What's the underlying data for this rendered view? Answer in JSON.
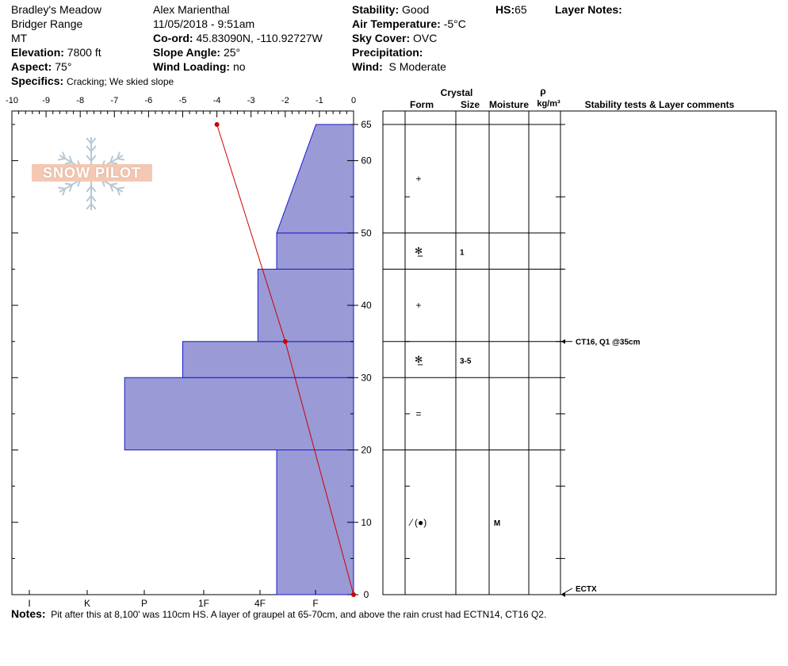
{
  "header": {
    "location": "Bradley's Meadow",
    "range": "Bridger Range",
    "state": "MT",
    "elevation_label": "Elevation:",
    "elevation": "7800 ft",
    "aspect_label": "Aspect:",
    "aspect": "75°",
    "observer": "Alex Marienthal",
    "datetime": "11/05/2018 - 9:51am",
    "coord_label": "Co-ord:",
    "coord": "45.83090N, -110.92727W",
    "slope_label": "Slope Angle:",
    "slope": "25°",
    "wind_loading_label": "Wind Loading:",
    "wind_loading": "no",
    "stability_label": "Stability:",
    "stability": "Good",
    "air_temp_label": "Air Temperature:",
    "air_temp": "-5°C",
    "sky_label": "Sky Cover:",
    "sky": "OVC",
    "precip_label": "Precipitation:",
    "wind_label": "Wind:",
    "wind": "S Moderate",
    "hs_label": "HS:",
    "hs": "65",
    "layer_notes_label": "Layer Notes:",
    "specifics_label": "Specifics:",
    "specifics": "Cracking;  We skied slope"
  },
  "logo": {
    "text": "SNOW PILOT"
  },
  "chart_data": {
    "type": "snow-profile",
    "temperature_axis": {
      "ticks": [
        "-10",
        "-9",
        "-8",
        "-7",
        "-6",
        "-5",
        "-4",
        "-3",
        "-2",
        "-1",
        "0"
      ],
      "range": [
        -10,
        0
      ]
    },
    "height_axis": {
      "range": [
        0,
        65
      ],
      "tick_labels": [
        "0",
        "10",
        "20",
        "30",
        "40",
        "50",
        "60",
        "65"
      ],
      "tick_values": [
        0,
        10,
        20,
        30,
        40,
        50,
        60,
        65
      ]
    },
    "hardness_axis": {
      "labels": [
        "I",
        "K",
        "P",
        "1F",
        "4F",
        "F"
      ]
    },
    "hardness_profile": [
      {
        "bottom": 0,
        "top": 20,
        "hardness_bottom": 2.25,
        "hardness_top": 2.25
      },
      {
        "bottom": 20,
        "top": 30,
        "hardness_bottom": 6.7,
        "hardness_top": 6.7
      },
      {
        "bottom": 30,
        "top": 35,
        "hardness_bottom": 5.0,
        "hardness_top": 5.0
      },
      {
        "bottom": 35,
        "top": 45,
        "hardness_bottom": 2.8,
        "hardness_top": 2.8
      },
      {
        "bottom": 45,
        "top": 50,
        "hardness_bottom": 2.25,
        "hardness_top": 2.25
      },
      {
        "bottom": 50,
        "top": 65,
        "hardness_bottom": 2.25,
        "hardness_top": 1.1
      }
    ],
    "temperature_profile": [
      {
        "height": 65,
        "temp": -4.0
      },
      {
        "height": 35,
        "temp": -2.0
      },
      {
        "height": 0,
        "temp": 0.0
      }
    ],
    "table_headers": {
      "crystal": "Crystal",
      "form": "Form",
      "size": "Size",
      "moisture": "Moisture",
      "rho": "ρ",
      "density_unit": "kg/m³",
      "stability": "Stability tests & Layer comments"
    },
    "layers": [
      {
        "bottom": 50,
        "top": 65,
        "form": "+",
        "size": "",
        "moisture": ""
      },
      {
        "bottom": 45,
        "top": 50,
        "form": "✻̲",
        "size": "1",
        "moisture": ""
      },
      {
        "bottom": 35,
        "top": 45,
        "form": "+",
        "size": "",
        "moisture": ""
      },
      {
        "bottom": 30,
        "top": 35,
        "form": "✻̲",
        "size": "3-5",
        "moisture": ""
      },
      {
        "bottom": 20,
        "top": 30,
        "form": "=",
        "size": "",
        "moisture": ""
      },
      {
        "bottom": 0,
        "top": 20,
        "form": "⁄ (●)",
        "size": "",
        "moisture": "M"
      }
    ],
    "stability_tests": [
      {
        "height": 35,
        "label": "CT16, Q1 @35cm"
      },
      {
        "height": 0,
        "label": "ECTX"
      }
    ],
    "colors": {
      "hardness_fill": "#9a9ad6",
      "hardness_stroke": "#1a1acc",
      "temperature_line": "#cc0000",
      "logo_snowflake": "#b8c8d4"
    }
  },
  "notes": {
    "label": "Notes:",
    "text": "Pit after this at 8,100' was 110cm HS. A layer of graupel at 65-70cm, and above the rain crust had ECTN14, CT16 Q2."
  }
}
